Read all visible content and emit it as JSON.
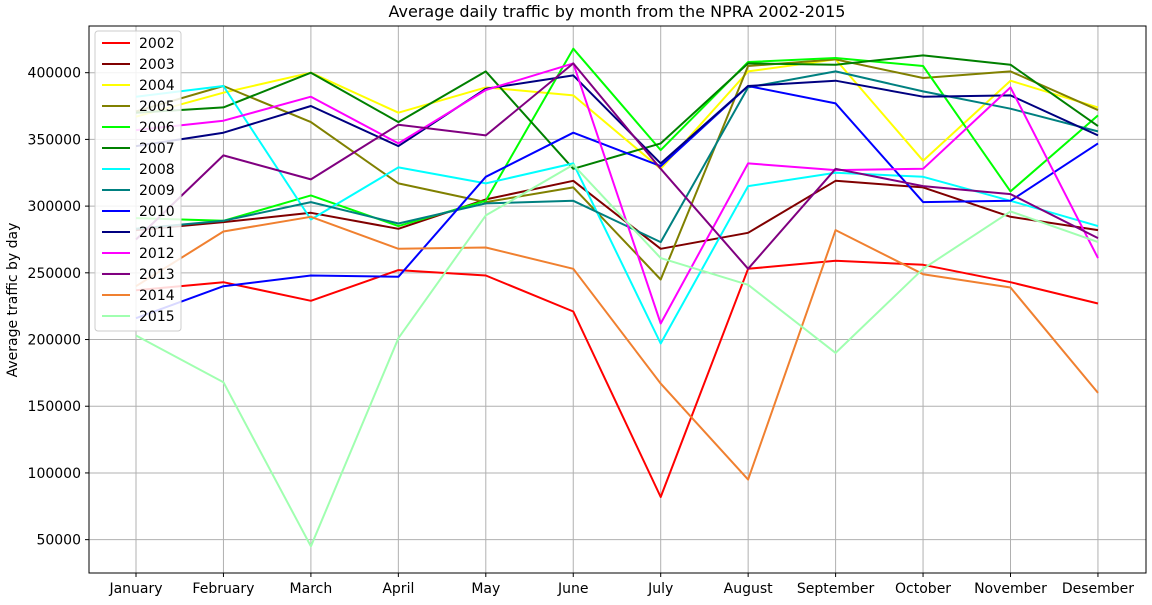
{
  "chart_data": {
    "type": "line",
    "title": "Average daily traffic by month from the NPRA 2002-2015",
    "xlabel": "",
    "ylabel": "Average traffic by day",
    "categories": [
      "January",
      "February",
      "March",
      "April",
      "May",
      "June",
      "July",
      "August",
      "September",
      "October",
      "November",
      "Desember"
    ],
    "yticks": [
      "50000",
      "100000",
      "150000",
      "200000",
      "250000",
      "300000",
      "350000",
      "400000"
    ],
    "ytick_values": [
      50000,
      100000,
      150000,
      200000,
      250000,
      300000,
      350000,
      400000
    ],
    "ylim": [
      25000,
      435000
    ],
    "grid": true,
    "legend_position": "top-left",
    "series": [
      {
        "name": "2002",
        "color": "#ff0000",
        "values": [
          237000,
          243000,
          229000,
          252000,
          248000,
          221000,
          82000,
          253000,
          259000,
          256000,
          243000,
          227000
        ]
      },
      {
        "name": "2003",
        "color": "#800000",
        "values": [
          282000,
          288000,
          295000,
          283000,
          305000,
          319000,
          268000,
          280000,
          319000,
          314000,
          292000,
          282000
        ]
      },
      {
        "name": "2004",
        "color": "#ffff00",
        "values": [
          367000,
          385000,
          400000,
          370000,
          389000,
          383000,
          328000,
          401000,
          410000,
          334000,
          394000,
          374000
        ]
      },
      {
        "name": "2005",
        "color": "#808000",
        "values": [
          371000,
          390000,
          363000,
          317000,
          303000,
          314000,
          245000,
          405000,
          410000,
          396000,
          401000,
          372000
        ]
      },
      {
        "name": "2006",
        "color": "#00ff00",
        "values": [
          291000,
          289000,
          308000,
          285000,
          304000,
          418000,
          342000,
          408000,
          411000,
          405000,
          311000,
          368000
        ]
      },
      {
        "name": "2007",
        "color": "#008000",
        "values": [
          370000,
          374000,
          400000,
          363000,
          401000,
          328000,
          347000,
          407000,
          406000,
          413000,
          406000,
          360000
        ]
      },
      {
        "name": "2008",
        "color": "#00ffff",
        "values": [
          382000,
          390000,
          290000,
          329000,
          317000,
          332000,
          197000,
          315000,
          325000,
          322000,
          304000,
          285000
        ]
      },
      {
        "name": "2009",
        "color": "#008080",
        "values": [
          283000,
          289000,
          303000,
          287000,
          302000,
          304000,
          273000,
          389000,
          401000,
          386000,
          373000,
          356000
        ]
      },
      {
        "name": "2010",
        "color": "#0000ff",
        "values": [
          216000,
          240000,
          248000,
          247000,
          322000,
          355000,
          330000,
          390000,
          377000,
          303000,
          304000,
          347000
        ]
      },
      {
        "name": "2011",
        "color": "#000080",
        "values": [
          345000,
          355000,
          375000,
          345000,
          388000,
          398000,
          332000,
          390000,
          394000,
          382000,
          383000,
          353000
        ]
      },
      {
        "name": "2012",
        "color": "#ff00ff",
        "values": [
          357000,
          364000,
          382000,
          347000,
          387000,
          407000,
          212000,
          332000,
          327000,
          328000,
          389000,
          261000
        ]
      },
      {
        "name": "2013",
        "color": "#800080",
        "values": [
          275000,
          338000,
          320000,
          361000,
          353000,
          407000,
          328000,
          253000,
          328000,
          315000,
          309000,
          276000
        ]
      },
      {
        "name": "2014",
        "color": "#f08030",
        "values": [
          240000,
          281000,
          292000,
          268000,
          269000,
          253000,
          167000,
          95000,
          282000,
          249000,
          239000,
          160000
        ]
      },
      {
        "name": "2015",
        "color": "#a0ffb0",
        "values": [
          203000,
          168000,
          45000,
          201000,
          293000,
          331000,
          261000,
          241000,
          190000,
          253000,
          296000,
          273000
        ]
      }
    ]
  }
}
